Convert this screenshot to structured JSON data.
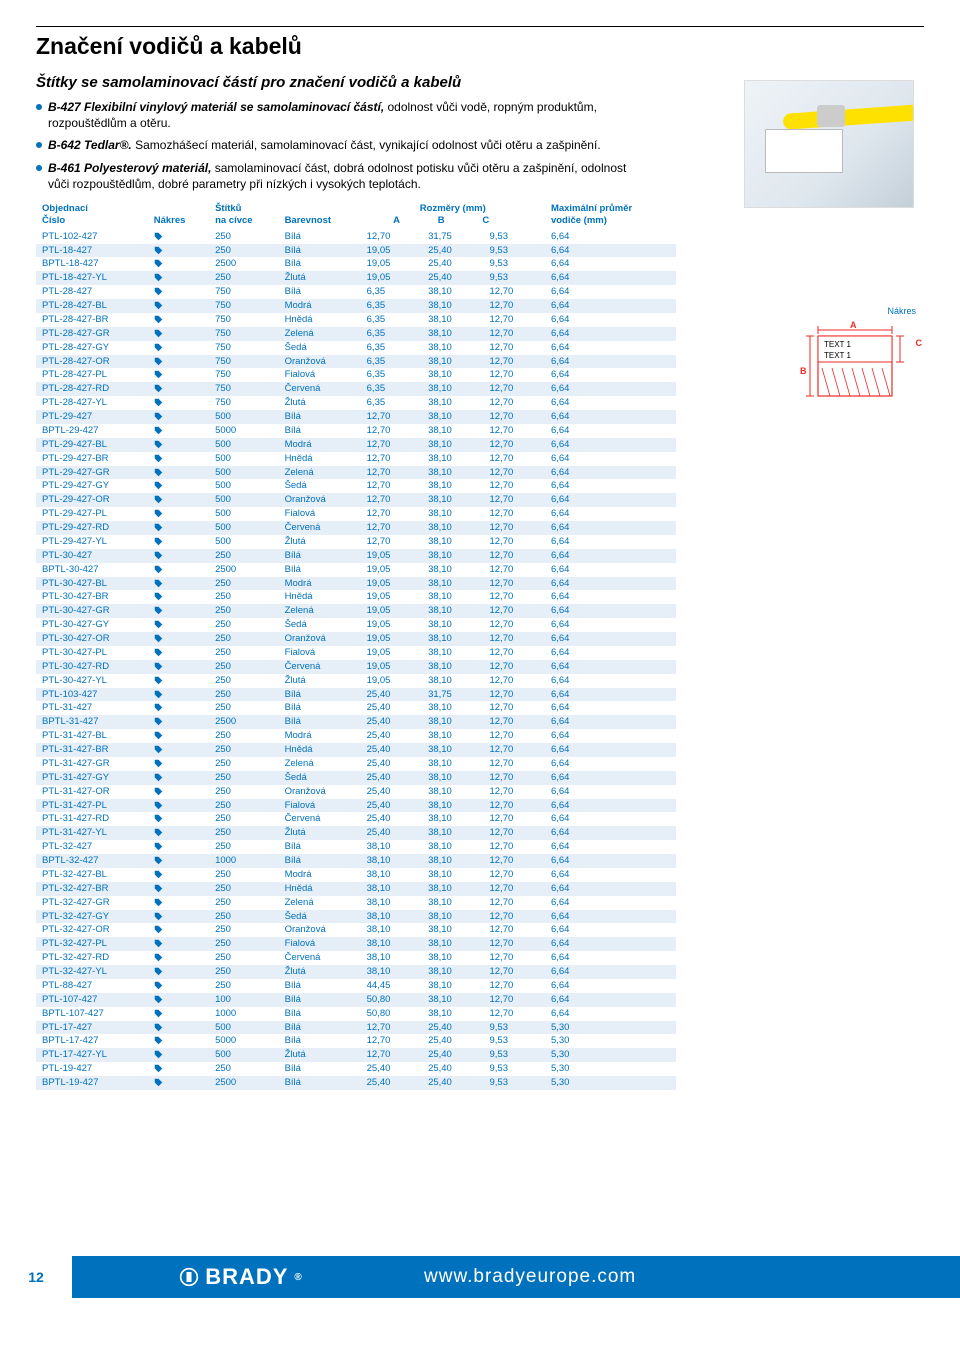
{
  "page_number": "12",
  "footer_brand": "BRADY",
  "footer_url": "www.bradyeurope.com",
  "title": "Značení vodičů a kabelů",
  "section_title": "Štítky se samolaminovací částí pro značení vodičů a kabelů",
  "bullets": [
    {
      "lead": "B-427 Flexibilní vinylový materiál se samolaminovací částí,",
      "rest": " odolnost vůči vodě, ropným produktům, rozpouštědlům a otěru."
    },
    {
      "lead": "B-642 Tedlar®.",
      "rest": " Samozhášecí materiál, samolaminovací část, vynikající odolnost vůči otěru a zašpinění."
    },
    {
      "lead": "B-461 Polyesterový materiál,",
      "rest": " samolaminovací část, dobrá odolnost potisku vůči otěru a zašpinění, odolnost vůči rozpouštědlům, dobré parametry při nízkých i vysokých teplotách."
    }
  ],
  "diagram": {
    "caption": "Nákres",
    "A": "A",
    "B": "B",
    "C": "C",
    "text1": "TEXT 1",
    "text2": "TEXT 1"
  },
  "table": {
    "headers": {
      "col1a": "Objednací",
      "col1b": "Číslo",
      "col2": "Nákres",
      "col3a": "Štítků",
      "col3b": "na cívce",
      "col4": "Barevnost",
      "dims": "Rozměry (mm)",
      "A": "A",
      "B": "B",
      "C": "C",
      "maxa": "Maximální průměr",
      "maxb": "vodiče (mm)"
    },
    "rows": [
      [
        "PTL-102-427",
        "250",
        "Bílá",
        "12,70",
        "31,75",
        "9,53",
        "6,64"
      ],
      [
        "PTL-18-427",
        "250",
        "Bílá",
        "19,05",
        "25,40",
        "9,53",
        "6,64"
      ],
      [
        "BPTL-18-427",
        "2500",
        "Bílá",
        "19,05",
        "25,40",
        "9,53",
        "6,64"
      ],
      [
        "PTL-18-427-YL",
        "250",
        "Žlutá",
        "19,05",
        "25,40",
        "9,53",
        "6,64"
      ],
      [
        "PTL-28-427",
        "750",
        "Bílá",
        "6,35",
        "38,10",
        "12,70",
        "6,64"
      ],
      [
        "PTL-28-427-BL",
        "750",
        "Modrá",
        "6,35",
        "38,10",
        "12,70",
        "6,64"
      ],
      [
        "PTL-28-427-BR",
        "750",
        "Hnědá",
        "6,35",
        "38,10",
        "12,70",
        "6,64"
      ],
      [
        "PTL-28-427-GR",
        "750",
        "Zelená",
        "6,35",
        "38,10",
        "12,70",
        "6,64"
      ],
      [
        "PTL-28-427-GY",
        "750",
        "Šedá",
        "6,35",
        "38,10",
        "12,70",
        "6,64"
      ],
      [
        "PTL-28-427-OR",
        "750",
        "Oranžová",
        "6,35",
        "38,10",
        "12,70",
        "6,64"
      ],
      [
        "PTL-28-427-PL",
        "750",
        "Fialová",
        "6,35",
        "38,10",
        "12,70",
        "6,64"
      ],
      [
        "PTL-28-427-RD",
        "750",
        "Červená",
        "6,35",
        "38,10",
        "12,70",
        "6,64"
      ],
      [
        "PTL-28-427-YL",
        "750",
        "Žlutá",
        "6,35",
        "38,10",
        "12,70",
        "6,64"
      ],
      [
        "PTL-29-427",
        "500",
        "Bílá",
        "12,70",
        "38,10",
        "12,70",
        "6,64"
      ],
      [
        "BPTL-29-427",
        "5000",
        "Bílá",
        "12,70",
        "38,10",
        "12,70",
        "6,64"
      ],
      [
        "PTL-29-427-BL",
        "500",
        "Modrá",
        "12,70",
        "38,10",
        "12,70",
        "6,64"
      ],
      [
        "PTL-29-427-BR",
        "500",
        "Hnědá",
        "12,70",
        "38,10",
        "12,70",
        "6,64"
      ],
      [
        "PTL-29-427-GR",
        "500",
        "Zelená",
        "12,70",
        "38,10",
        "12,70",
        "6,64"
      ],
      [
        "PTL-29-427-GY",
        "500",
        "Šedá",
        "12,70",
        "38,10",
        "12,70",
        "6,64"
      ],
      [
        "PTL-29-427-OR",
        "500",
        "Oranžová",
        "12,70",
        "38,10",
        "12,70",
        "6,64"
      ],
      [
        "PTL-29-427-PL",
        "500",
        "Fialová",
        "12,70",
        "38,10",
        "12,70",
        "6,64"
      ],
      [
        "PTL-29-427-RD",
        "500",
        "Červená",
        "12,70",
        "38,10",
        "12,70",
        "6,64"
      ],
      [
        "PTL-29-427-YL",
        "500",
        "Žlutá",
        "12,70",
        "38,10",
        "12,70",
        "6,64"
      ],
      [
        "PTL-30-427",
        "250",
        "Bílá",
        "19,05",
        "38,10",
        "12,70",
        "6,64"
      ],
      [
        "BPTL-30-427",
        "2500",
        "Bílá",
        "19,05",
        "38,10",
        "12,70",
        "6,64"
      ],
      [
        "PTL-30-427-BL",
        "250",
        "Modrá",
        "19,05",
        "38,10",
        "12,70",
        "6,64"
      ],
      [
        "PTL-30-427-BR",
        "250",
        "Hnědá",
        "19,05",
        "38,10",
        "12,70",
        "6,64"
      ],
      [
        "PTL-30-427-GR",
        "250",
        "Zelená",
        "19,05",
        "38,10",
        "12,70",
        "6,64"
      ],
      [
        "PTL-30-427-GY",
        "250",
        "Šedá",
        "19,05",
        "38,10",
        "12,70",
        "6,64"
      ],
      [
        "PTL-30-427-OR",
        "250",
        "Oranžová",
        "19,05",
        "38,10",
        "12,70",
        "6,64"
      ],
      [
        "PTL-30-427-PL",
        "250",
        "Fialová",
        "19,05",
        "38,10",
        "12,70",
        "6,64"
      ],
      [
        "PTL-30-427-RD",
        "250",
        "Červená",
        "19,05",
        "38,10",
        "12,70",
        "6,64"
      ],
      [
        "PTL-30-427-YL",
        "250",
        "Žlutá",
        "19,05",
        "38,10",
        "12,70",
        "6,64"
      ],
      [
        "PTL-103-427",
        "250",
        "Bílá",
        "25,40",
        "31,75",
        "12,70",
        "6,64"
      ],
      [
        "PTL-31-427",
        "250",
        "Bílá",
        "25,40",
        "38,10",
        "12,70",
        "6,64"
      ],
      [
        "BPTL-31-427",
        "2500",
        "Bílá",
        "25,40",
        "38,10",
        "12,70",
        "6,64"
      ],
      [
        "PTL-31-427-BL",
        "250",
        "Modrá",
        "25,40",
        "38,10",
        "12,70",
        "6,64"
      ],
      [
        "PTL-31-427-BR",
        "250",
        "Hnědá",
        "25,40",
        "38,10",
        "12,70",
        "6,64"
      ],
      [
        "PTL-31-427-GR",
        "250",
        "Zelená",
        "25,40",
        "38,10",
        "12,70",
        "6,64"
      ],
      [
        "PTL-31-427-GY",
        "250",
        "Šedá",
        "25,40",
        "38,10",
        "12,70",
        "6,64"
      ],
      [
        "PTL-31-427-OR",
        "250",
        "Oranžová",
        "25,40",
        "38,10",
        "12,70",
        "6,64"
      ],
      [
        "PTL-31-427-PL",
        "250",
        "Fialová",
        "25,40",
        "38,10",
        "12,70",
        "6,64"
      ],
      [
        "PTL-31-427-RD",
        "250",
        "Červená",
        "25,40",
        "38,10",
        "12,70",
        "6,64"
      ],
      [
        "PTL-31-427-YL",
        "250",
        "Žlutá",
        "25,40",
        "38,10",
        "12,70",
        "6,64"
      ],
      [
        "PTL-32-427",
        "250",
        "Bílá",
        "38,10",
        "38,10",
        "12,70",
        "6,64"
      ],
      [
        "BPTL-32-427",
        "1000",
        "Bílá",
        "38,10",
        "38,10",
        "12,70",
        "6,64"
      ],
      [
        "PTL-32-427-BL",
        "250",
        "Modrá",
        "38,10",
        "38,10",
        "12,70",
        "6,64"
      ],
      [
        "PTL-32-427-BR",
        "250",
        "Hnědá",
        "38,10",
        "38,10",
        "12,70",
        "6,64"
      ],
      [
        "PTL-32-427-GR",
        "250",
        "Zelená",
        "38,10",
        "38,10",
        "12,70",
        "6,64"
      ],
      [
        "PTL-32-427-GY",
        "250",
        "Šedá",
        "38,10",
        "38,10",
        "12,70",
        "6,64"
      ],
      [
        "PTL-32-427-OR",
        "250",
        "Oranžová",
        "38,10",
        "38,10",
        "12,70",
        "6,64"
      ],
      [
        "PTL-32-427-PL",
        "250",
        "Fialová",
        "38,10",
        "38,10",
        "12,70",
        "6,64"
      ],
      [
        "PTL-32-427-RD",
        "250",
        "Červená",
        "38,10",
        "38,10",
        "12,70",
        "6,64"
      ],
      [
        "PTL-32-427-YL",
        "250",
        "Žlutá",
        "38,10",
        "38,10",
        "12,70",
        "6,64"
      ],
      [
        "PTL-88-427",
        "250",
        "Bílá",
        "44,45",
        "38,10",
        "12,70",
        "6,64"
      ],
      [
        "PTL-107-427",
        "100",
        "Bílá",
        "50,80",
        "38,10",
        "12,70",
        "6,64"
      ],
      [
        "BPTL-107-427",
        "1000",
        "Bílá",
        "50,80",
        "38,10",
        "12,70",
        "6,64"
      ],
      [
        "PTL-17-427",
        "500",
        "Bílá",
        "12,70",
        "25,40",
        "9,53",
        "5,30"
      ],
      [
        "BPTL-17-427",
        "5000",
        "Bílá",
        "12,70",
        "25,40",
        "9,53",
        "5,30"
      ],
      [
        "PTL-17-427-YL",
        "500",
        "Žlutá",
        "12,70",
        "25,40",
        "9,53",
        "5,30"
      ],
      [
        "PTL-19-427",
        "250",
        "Bílá",
        "25,40",
        "25,40",
        "9,53",
        "5,30"
      ],
      [
        "BPTL-19-427",
        "2500",
        "Bílá",
        "25,40",
        "25,40",
        "9,53",
        "5,30"
      ]
    ]
  },
  "colors": {
    "blue": "#0071bc",
    "row_light": "#ffffff",
    "row_dark": "#e6eff8",
    "red": "#ee2a24"
  }
}
